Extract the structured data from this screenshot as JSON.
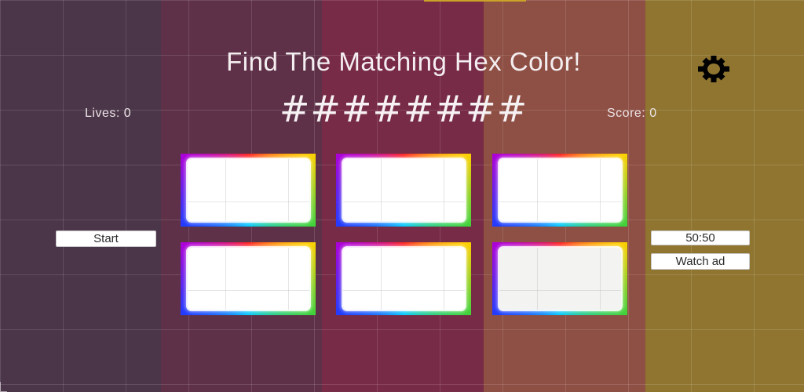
{
  "game": {
    "title": "Find The Matching Hex Color!",
    "hex_code": "########",
    "lives_label": "Lives: 0",
    "score_label": "Score: 0"
  },
  "controls": {
    "start_label": "Start",
    "timer_label": "50:50",
    "watch_ad_label": "Watch ad",
    "settings_icon": "gear-icon"
  },
  "cards": [
    {
      "id": 1,
      "state": "blank"
    },
    {
      "id": 2,
      "state": "blank"
    },
    {
      "id": 3,
      "state": "blank"
    },
    {
      "id": 4,
      "state": "blank"
    },
    {
      "id": 5,
      "state": "blank"
    },
    {
      "id": 6,
      "state": "dimmed"
    }
  ],
  "colors": {
    "background_stripes": [
      "#4b3549",
      "#5e3148",
      "#772b46",
      "#8e4f44",
      "#8f7530"
    ],
    "card_fill": "#ffffff",
    "text": "#f4eef0"
  }
}
